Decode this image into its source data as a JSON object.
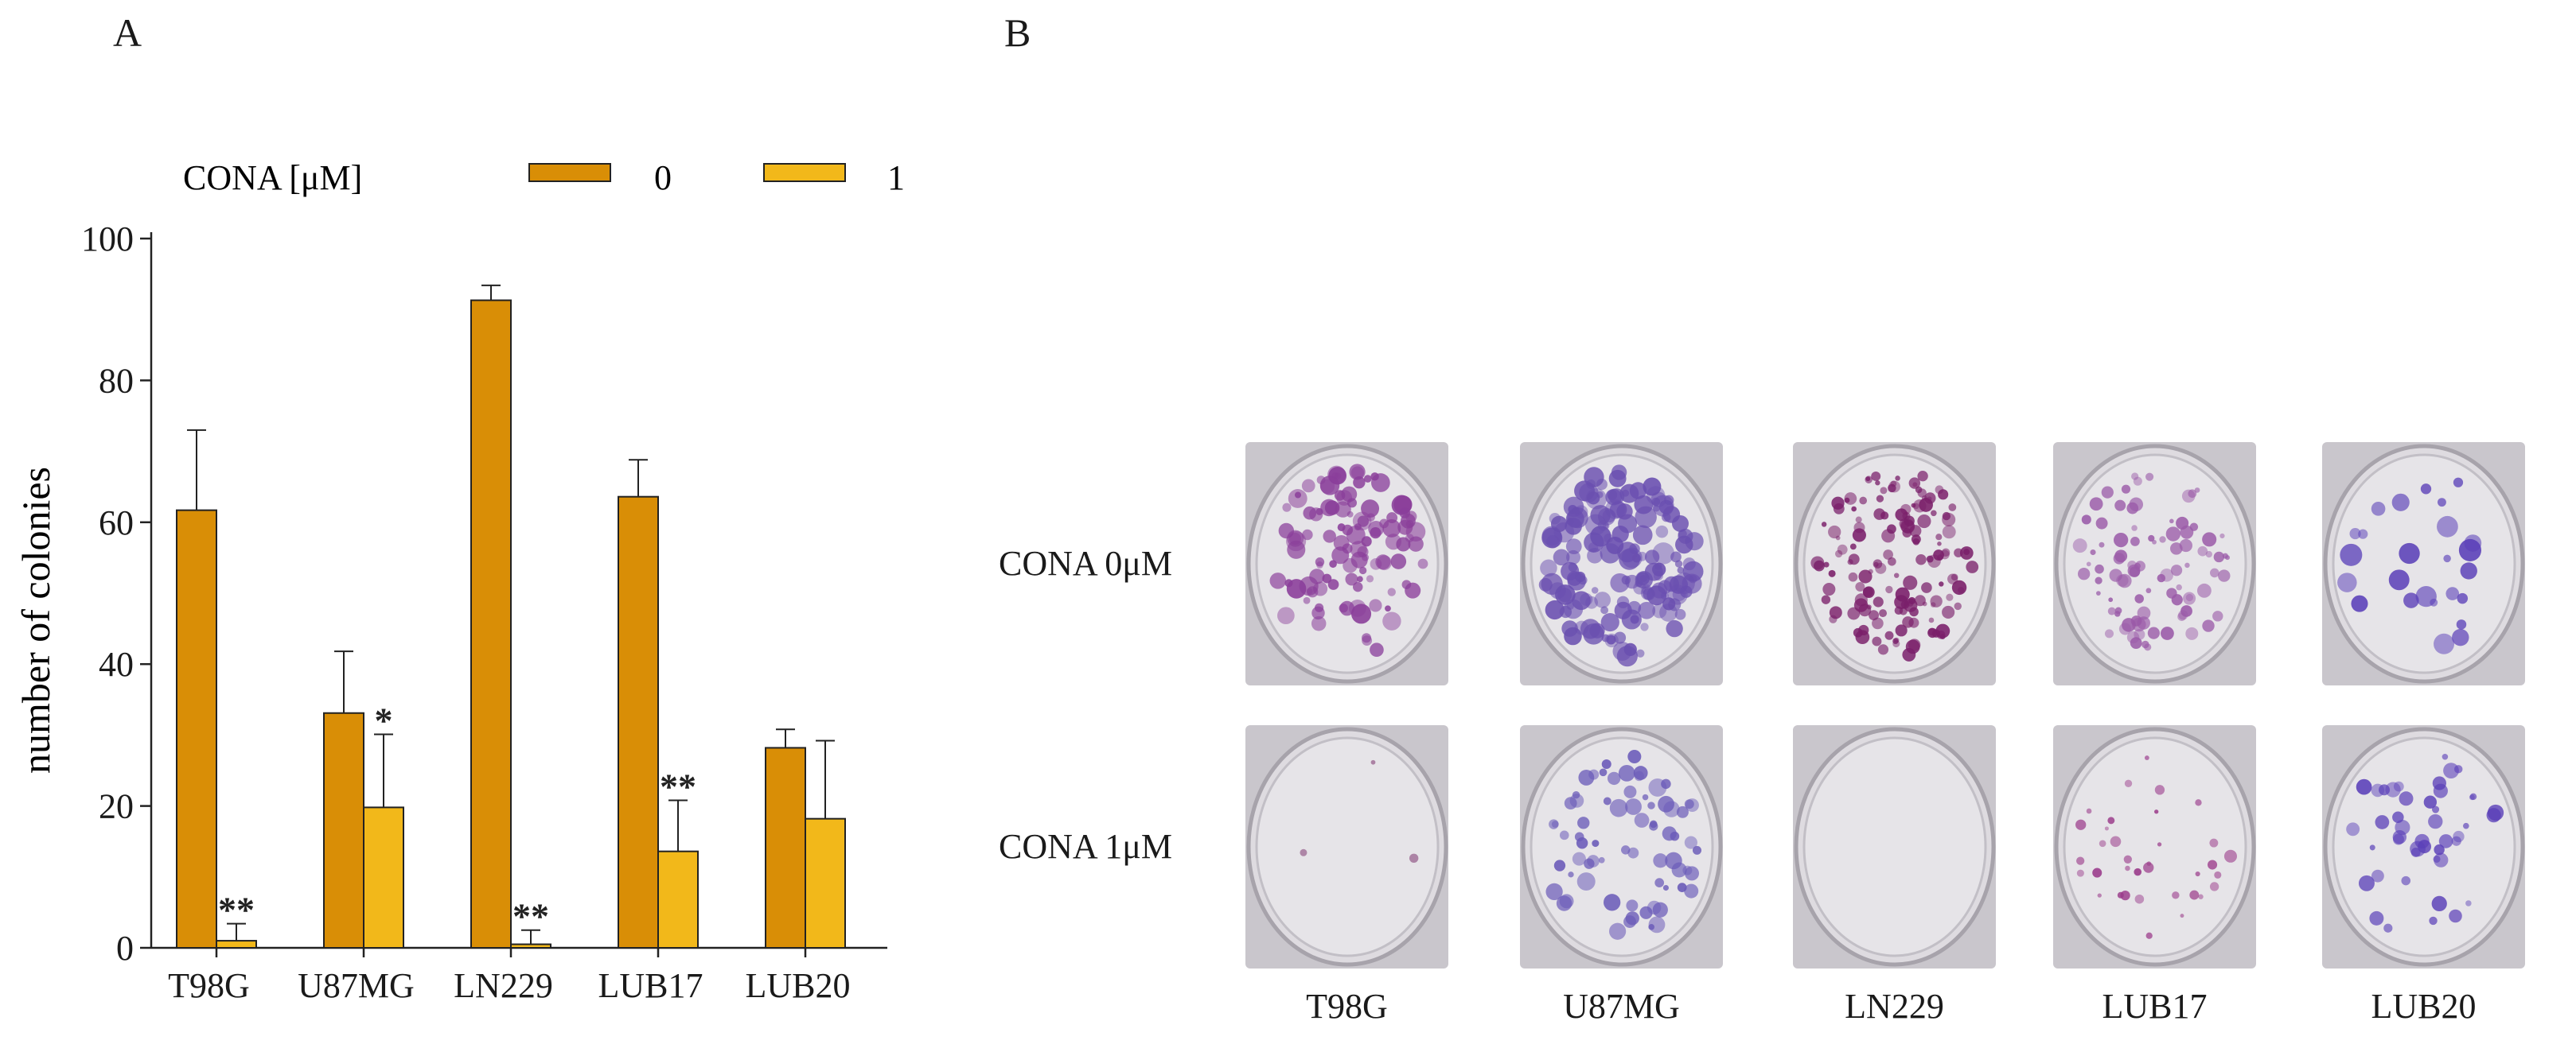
{
  "panels": {
    "a_label": "A",
    "b_label": "B"
  },
  "chart_data": {
    "type": "bar",
    "legend": {
      "title": "CONA [μM]",
      "position": "top",
      "entries": [
        "0",
        "1"
      ]
    },
    "ylabel": "number of colonies",
    "xlabel": "",
    "ylim": [
      0,
      100
    ],
    "yticks": [
      0,
      20,
      40,
      60,
      80,
      100
    ],
    "categories": [
      "T98G",
      "U87MG",
      "LN229",
      "LUB17",
      "LUB20"
    ],
    "series": [
      {
        "name": "0",
        "color": "#D98E06",
        "values": [
          61.7,
          33.1,
          91.3,
          63.6,
          28.2
        ],
        "errors": [
          11.3,
          8.7,
          2.1,
          5.2,
          2.6
        ]
      },
      {
        "name": "1",
        "color": "#F2B81A",
        "values": [
          1.0,
          19.8,
          0.5,
          13.6,
          18.2
        ],
        "errors": [
          2.4,
          10.3,
          2.0,
          7.2,
          11.0
        ]
      }
    ],
    "annotations": [
      {
        "category": "T98G",
        "series": "1",
        "text": "**"
      },
      {
        "category": "U87MG",
        "series": "1",
        "text": "*"
      },
      {
        "category": "LN229",
        "series": "1",
        "text": "**"
      },
      {
        "category": "LUB17",
        "series": "1",
        "text": "**"
      }
    ],
    "grid": false
  },
  "plates": {
    "rows": [
      {
        "label": "CONA 0μM",
        "densities": [
          110,
          160,
          150,
          90,
          25
        ],
        "sizes": [
          11,
          12,
          8,
          8,
          13
        ],
        "tones": [
          "#8a3e9a",
          "#6a4fb0",
          "#7a1f6a",
          "#9a5aa8",
          "#5a3fb8"
        ]
      },
      {
        "label": "CONA 1μM",
        "densities": [
          3,
          70,
          0,
          35,
          45
        ],
        "sizes": [
          5,
          10,
          5,
          7,
          9
        ],
        "tones": [
          "#7a2f6a",
          "#6a5ab8",
          "#7a5a8a",
          "#9a3a8a",
          "#5a3fb8"
        ]
      }
    ],
    "columns": [
      "T98G",
      "U87MG",
      "LN229",
      "LUB17",
      "LUB20"
    ]
  }
}
